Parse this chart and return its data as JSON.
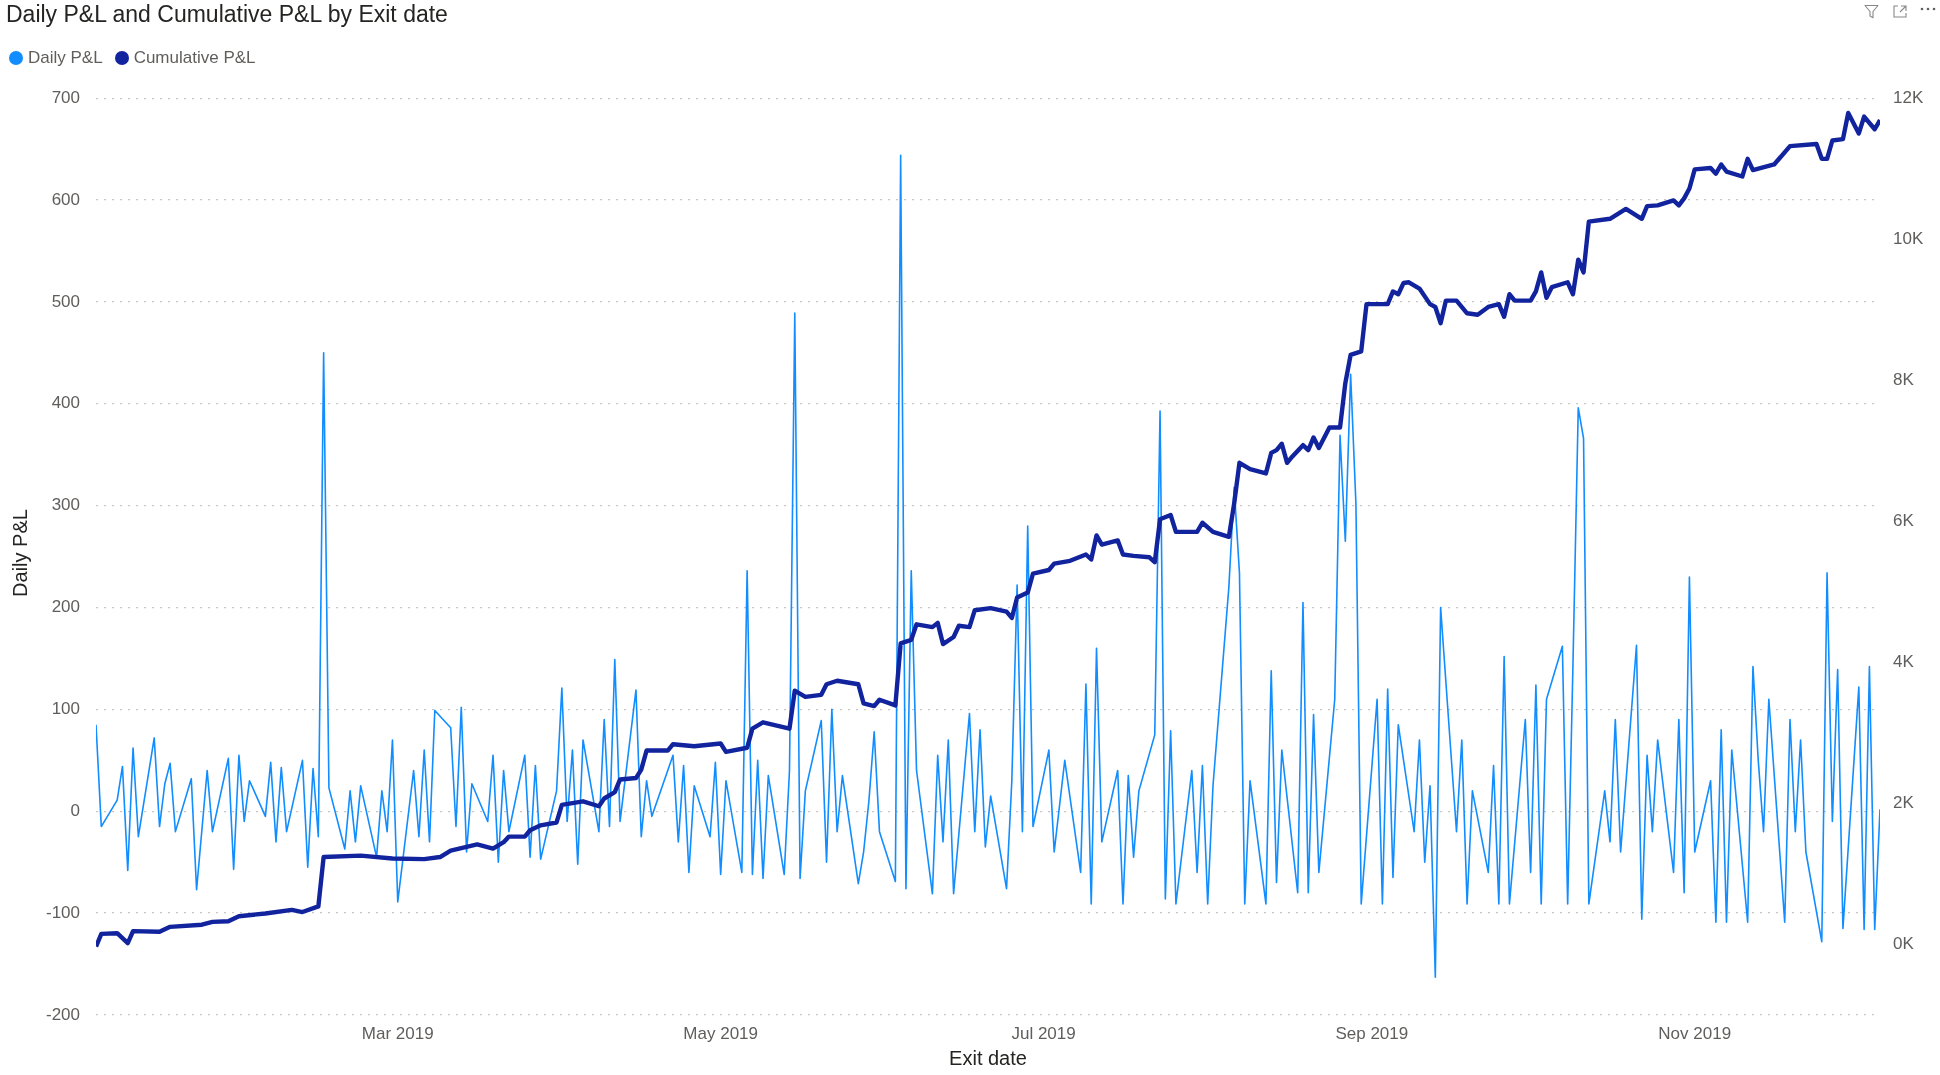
{
  "chart_data": {
    "type": "line",
    "title": "Daily P&L and Cumulative P&L by Exit date",
    "xlabel": "Exit date",
    "ylabel": "Daily P&L",
    "x": [
      "2019-01-03",
      "2019-01-04",
      "2019-01-07",
      "2019-01-08",
      "2019-01-09",
      "2019-01-10",
      "2019-01-11",
      "2019-01-14",
      "2019-01-15",
      "2019-01-16",
      "2019-01-17",
      "2019-01-18",
      "2019-01-21",
      "2019-01-22",
      "2019-01-24",
      "2019-01-25",
      "2019-01-28",
      "2019-01-29",
      "2019-01-30",
      "2019-01-31",
      "2019-02-01",
      "2019-02-04",
      "2019-02-05",
      "2019-02-06",
      "2019-02-07",
      "2019-02-08",
      "2019-02-11",
      "2019-02-12",
      "2019-02-13",
      "2019-02-14",
      "2019-02-15",
      "2019-02-16",
      "2019-02-19",
      "2019-02-20",
      "2019-02-21",
      "2019-02-22",
      "2019-02-25",
      "2019-02-26",
      "2019-02-27",
      "2019-02-28",
      "2019-03-01",
      "2019-03-04",
      "2019-03-05",
      "2019-03-06",
      "2019-03-07",
      "2019-03-08",
      "2019-03-11",
      "2019-03-12",
      "2019-03-13",
      "2019-03-14",
      "2019-03-15",
      "2019-03-18",
      "2019-03-19",
      "2019-03-20",
      "2019-03-21",
      "2019-03-22",
      "2019-03-25",
      "2019-03-26",
      "2019-03-27",
      "2019-03-28",
      "2019-03-31",
      "2019-04-01",
      "2019-04-02",
      "2019-04-03",
      "2019-04-04",
      "2019-04-05",
      "2019-04-08",
      "2019-04-09",
      "2019-04-10",
      "2019-04-11",
      "2019-04-12",
      "2019-04-15",
      "2019-04-16",
      "2019-04-17",
      "2019-04-18",
      "2019-04-22",
      "2019-04-23",
      "2019-04-24",
      "2019-04-25",
      "2019-04-26",
      "2019-04-29",
      "2019-04-30",
      "2019-05-01",
      "2019-05-02",
      "2019-05-05",
      "2019-05-06",
      "2019-05-07",
      "2019-05-08",
      "2019-05-09",
      "2019-05-10",
      "2019-05-13",
      "2019-05-14",
      "2019-05-15",
      "2019-05-16",
      "2019-05-17",
      "2019-05-20",
      "2019-05-21",
      "2019-05-22",
      "2019-05-23",
      "2019-05-24",
      "2019-05-27",
      "2019-05-28",
      "2019-05-29",
      "2019-05-30",
      "2019-05-31",
      "2019-06-03",
      "2019-06-04",
      "2019-06-05",
      "2019-06-06",
      "2019-06-07",
      "2019-06-10",
      "2019-06-11",
      "2019-06-12",
      "2019-06-13",
      "2019-06-14",
      "2019-06-17",
      "2019-06-18",
      "2019-06-19",
      "2019-06-20",
      "2019-06-21",
      "2019-06-24",
      "2019-06-25",
      "2019-06-26",
      "2019-06-27",
      "2019-06-28",
      "2019-06-29",
      "2019-07-02",
      "2019-07-03",
      "2019-07-05",
      "2019-07-08",
      "2019-07-09",
      "2019-07-10",
      "2019-07-11",
      "2019-07-12",
      "2019-07-15",
      "2019-07-16",
      "2019-07-17",
      "2019-07-18",
      "2019-07-19",
      "2019-07-22",
      "2019-07-23",
      "2019-07-24",
      "2019-07-25",
      "2019-07-26",
      "2019-07-29",
      "2019-07-30",
      "2019-07-31",
      "2019-08-01",
      "2019-08-02",
      "2019-08-05",
      "2019-08-06",
      "2019-08-07",
      "2019-08-08",
      "2019-08-09",
      "2019-08-12",
      "2019-08-13",
      "2019-08-14",
      "2019-08-15",
      "2019-08-18",
      "2019-08-19",
      "2019-08-20",
      "2019-08-21",
      "2019-08-22",
      "2019-08-25",
      "2019-08-26",
      "2019-08-27",
      "2019-08-28",
      "2019-08-29",
      "2019-08-30",
      "2019-09-02",
      "2019-09-03",
      "2019-09-04",
      "2019-09-05",
      "2019-09-06",
      "2019-09-09",
      "2019-09-10",
      "2019-09-11",
      "2019-09-12",
      "2019-09-13",
      "2019-09-14",
      "2019-09-17",
      "2019-09-18",
      "2019-09-19",
      "2019-09-20",
      "2019-09-23",
      "2019-09-24",
      "2019-09-25",
      "2019-09-26",
      "2019-09-27",
      "2019-09-30",
      "2019-10-01",
      "2019-10-02",
      "2019-10-03",
      "2019-10-04",
      "2019-10-07",
      "2019-10-08",
      "2019-10-09",
      "2019-10-10",
      "2019-10-11",
      "2019-10-12",
      "2019-10-15",
      "2019-10-16",
      "2019-10-17",
      "2019-10-18",
      "2019-10-21",
      "2019-10-22",
      "2019-10-23",
      "2019-10-24",
      "2019-10-25",
      "2019-10-28",
      "2019-10-29",
      "2019-10-30",
      "2019-10-31",
      "2019-11-01",
      "2019-11-04",
      "2019-11-05",
      "2019-11-06",
      "2019-11-07",
      "2019-11-08",
      "2019-11-11",
      "2019-11-12",
      "2019-11-13",
      "2019-11-14",
      "2019-11-15",
      "2019-11-18",
      "2019-11-19",
      "2019-11-20",
      "2019-11-21",
      "2019-11-22",
      "2019-11-25",
      "2019-11-26",
      "2019-11-27",
      "2019-11-28",
      "2019-11-29",
      "2019-12-02",
      "2019-12-03",
      "2019-12-04",
      "2019-12-05",
      "2019-12-06"
    ],
    "series": [
      {
        "name": "Daily P&L",
        "color": "#118dff",
        "values": [
          85,
          -15,
          11,
          44,
          -58,
          62,
          -25,
          72,
          -15,
          27,
          47,
          -20,
          32,
          -77,
          40,
          -20,
          52,
          -57,
          55,
          -10,
          30,
          -5,
          48,
          -30,
          43,
          -20,
          50,
          -55,
          42,
          -25,
          450,
          23,
          -37,
          20,
          -30,
          25,
          -45,
          20,
          -20,
          70,
          -89,
          40,
          -25,
          60,
          -30,
          99,
          82,
          -15,
          102,
          -40,
          27,
          -10,
          55,
          -50,
          40,
          -20,
          55,
          -45,
          45,
          -47,
          20,
          121,
          -10,
          60,
          -52,
          70,
          -20,
          90,
          -15,
          149,
          -10,
          119,
          -25,
          30,
          -5,
          55,
          -30,
          45,
          -60,
          25,
          -25,
          48,
          -62,
          30,
          -60,
          236,
          -62,
          50,
          -66,
          35,
          -62,
          40,
          489,
          -66,
          20,
          89,
          -50,
          100,
          -20,
          35,
          -71,
          -40,
          10,
          78,
          -20,
          -69,
          644,
          -76,
          236,
          40,
          -81,
          55,
          -30,
          70,
          -81,
          96,
          -20,
          80,
          -35,
          15,
          -76,
          30,
          222,
          -20,
          280,
          -15,
          60,
          -40,
          50,
          -60,
          125,
          -91,
          160,
          -30,
          40,
          -91,
          35,
          -45,
          20,
          75,
          393,
          -86,
          79,
          -91,
          40,
          -60,
          45,
          -91,
          25,
          220,
          318,
          234,
          -91,
          30,
          -91,
          138,
          -70,
          60,
          -80,
          205,
          -80,
          95,
          -60,
          110,
          369,
          265,
          429,
          302,
          -91,
          110,
          -91,
          120,
          -65,
          85,
          -20,
          70,
          -50,
          25,
          -163,
          200,
          -20,
          70,
          -91,
          20,
          -60,
          45,
          -91,
          152,
          -91,
          90,
          -60,
          124,
          -91,
          110,
          162,
          -91,
          144,
          396,
          366,
          -91,
          20,
          -30,
          90,
          -40,
          163,
          -106,
          55,
          -20,
          70,
          -60,
          90,
          -80,
          230,
          -40,
          30,
          -109,
          80,
          -109,
          60,
          -109,
          142,
          50,
          -20,
          110,
          -109,
          90,
          -20,
          70,
          -40,
          -128,
          234,
          -10,
          139,
          -115,
          122,
          -116,
          142,
          -116,
          2
        ]
      },
      {
        "name": "Cumulative P&L",
        "color": "#12239e",
        "axis": "y2",
        "x": [
          "2019-01-03",
          "2019-01-04",
          "2019-01-07",
          "2019-01-09",
          "2019-01-10",
          "2019-01-15",
          "2019-01-17",
          "2019-01-23",
          "2019-01-25",
          "2019-01-28",
          "2019-01-30",
          "2019-02-04",
          "2019-02-09",
          "2019-02-11",
          "2019-02-14",
          "2019-02-15",
          "2019-02-22",
          "2019-02-28",
          "2019-03-06",
          "2019-03-09",
          "2019-03-11",
          "2019-03-16",
          "2019-03-19",
          "2019-03-21",
          "2019-03-22",
          "2019-03-25",
          "2019-03-26",
          "2019-03-28",
          "2019-03-31",
          "2019-04-01",
          "2019-04-05",
          "2019-04-08",
          "2019-04-09",
          "2019-04-11",
          "2019-04-12",
          "2019-04-15",
          "2019-04-16",
          "2019-04-17",
          "2019-04-21",
          "2019-04-22",
          "2019-04-26",
          "2019-05-01",
          "2019-05-02",
          "2019-05-06",
          "2019-05-07",
          "2019-05-09",
          "2019-05-14",
          "2019-05-15",
          "2019-05-17",
          "2019-05-20",
          "2019-05-21",
          "2019-05-23",
          "2019-05-27",
          "2019-05-28",
          "2019-05-30",
          "2019-05-31",
          "2019-06-03",
          "2019-06-04",
          "2019-06-06",
          "2019-06-07",
          "2019-06-10",
          "2019-06-11",
          "2019-06-12",
          "2019-06-14",
          "2019-06-15",
          "2019-06-17",
          "2019-06-18",
          "2019-06-21",
          "2019-06-24",
          "2019-06-25",
          "2019-06-26",
          "2019-06-28",
          "2019-06-29",
          "2019-07-02",
          "2019-07-03",
          "2019-07-06",
          "2019-07-09",
          "2019-07-10",
          "2019-07-11",
          "2019-07-12",
          "2019-07-15",
          "2019-07-16",
          "2019-07-18",
          "2019-07-21",
          "2019-07-22",
          "2019-07-23",
          "2019-07-25",
          "2019-07-26",
          "2019-07-30",
          "2019-07-31",
          "2019-08-02",
          "2019-08-05",
          "2019-08-06",
          "2019-08-07",
          "2019-08-09",
          "2019-08-12",
          "2019-08-13",
          "2019-08-14",
          "2019-08-15",
          "2019-08-16",
          "2019-08-17",
          "2019-08-19",
          "2019-08-20",
          "2019-08-21",
          "2019-08-22",
          "2019-08-24",
          "2019-08-26",
          "2019-08-27",
          "2019-08-28",
          "2019-08-30",
          "2019-08-31",
          "2019-09-04",
          "2019-09-05",
          "2019-09-06",
          "2019-09-07",
          "2019-09-08",
          "2019-09-10",
          "2019-09-12",
          "2019-09-13",
          "2019-09-14",
          "2019-09-15",
          "2019-09-17",
          "2019-09-19",
          "2019-09-21",
          "2019-09-23",
          "2019-09-25",
          "2019-09-26",
          "2019-09-27",
          "2019-09-28",
          "2019-10-01",
          "2019-10-02",
          "2019-10-03",
          "2019-10-04",
          "2019-10-05",
          "2019-10-08",
          "2019-10-09",
          "2019-10-10",
          "2019-10-11",
          "2019-10-12",
          "2019-10-16",
          "2019-10-19",
          "2019-10-22",
          "2019-10-23",
          "2019-10-25",
          "2019-10-28",
          "2019-10-29",
          "2019-10-30",
          "2019-10-31",
          "2019-11-01",
          "2019-11-04",
          "2019-11-05",
          "2019-11-06",
          "2019-11-07",
          "2019-11-10",
          "2019-11-11",
          "2019-11-12",
          "2019-11-16",
          "2019-11-19",
          "2019-11-24",
          "2019-11-25",
          "2019-11-26",
          "2019-11-27",
          "2019-11-29",
          "2019-11-30",
          "2019-12-02",
          "2019-12-03",
          "2019-12-05",
          "2019-12-06"
        ],
        "values": [
          -30,
          150,
          160,
          20,
          190,
          180,
          250,
          280,
          320,
          330,
          400,
          440,
          490,
          460,
          540,
          1240,
          1260,
          1220,
          1210,
          1240,
          1330,
          1420,
          1360,
          1450,
          1530,
          1530,
          1620,
          1690,
          1730,
          1980,
          2030,
          1960,
          2070,
          2160,
          2340,
          2360,
          2480,
          2750,
          2750,
          2840,
          2810,
          2850,
          2730,
          2790,
          3060,
          3150,
          3060,
          3600,
          3510,
          3540,
          3690,
          3740,
          3690,
          3420,
          3380,
          3470,
          3390,
          4270,
          4320,
          4540,
          4500,
          4560,
          4260,
          4360,
          4520,
          4500,
          4740,
          4770,
          4720,
          4630,
          4920,
          4990,
          5260,
          5310,
          5400,
          5440,
          5530,
          5460,
          5800,
          5670,
          5730,
          5530,
          5510,
          5490,
          5420,
          6030,
          6090,
          5850,
          5850,
          5980,
          5850,
          5780,
          6250,
          6830,
          6740,
          6680,
          6970,
          7010,
          7100,
          6830,
          6920,
          7080,
          7010,
          7190,
          7040,
          7330,
          7330,
          7960,
          8360,
          8410,
          9080,
          9080,
          9260,
          9220,
          9380,
          9390,
          9300,
          9080,
          9040,
          8810,
          9130,
          9130,
          8950,
          8930,
          9040,
          9080,
          8900,
          9220,
          9130,
          9130,
          9260,
          9530,
          9170,
          9320,
          9390,
          9220,
          9710,
          9530,
          10250,
          10290,
          10430,
          10290,
          10470,
          10480,
          10550,
          10480,
          10580,
          10720,
          10990,
          11010,
          10930,
          11060,
          10960,
          10890,
          11140,
          10980,
          11060,
          11320,
          11350,
          11140,
          11140,
          11400,
          11420,
          11790,
          11500,
          11740,
          11560,
          11690
        ]
      }
    ],
    "xlim": [
      "2019-01-03",
      "2019-12-06"
    ],
    "xticks": [
      {
        "value": "2019-03-01",
        "label": "Mar 2019"
      },
      {
        "value": "2019-05-01",
        "label": "May 2019"
      },
      {
        "value": "2019-07-01",
        "label": "Jul 2019"
      },
      {
        "value": "2019-09-01",
        "label": "Sep 2019"
      },
      {
        "value": "2019-11-01",
        "label": "Nov 2019"
      }
    ],
    "ylim": [
      -200,
      700
    ],
    "yticks": [
      -200,
      -100,
      0,
      100,
      200,
      300,
      400,
      500,
      600,
      700
    ],
    "y2lim": [
      -1000,
      12000
    ],
    "y2ticks": [
      {
        "value": 0,
        "label": "0K"
      },
      {
        "value": 2000,
        "label": "2K"
      },
      {
        "value": 4000,
        "label": "4K"
      },
      {
        "value": 6000,
        "label": "6K"
      },
      {
        "value": 8000,
        "label": "8K"
      },
      {
        "value": 10000,
        "label": "10K"
      },
      {
        "value": 12000,
        "label": "12K"
      }
    ],
    "grid": "y",
    "legend": "top left",
    "marker": "none",
    "line_style": "solid"
  }
}
